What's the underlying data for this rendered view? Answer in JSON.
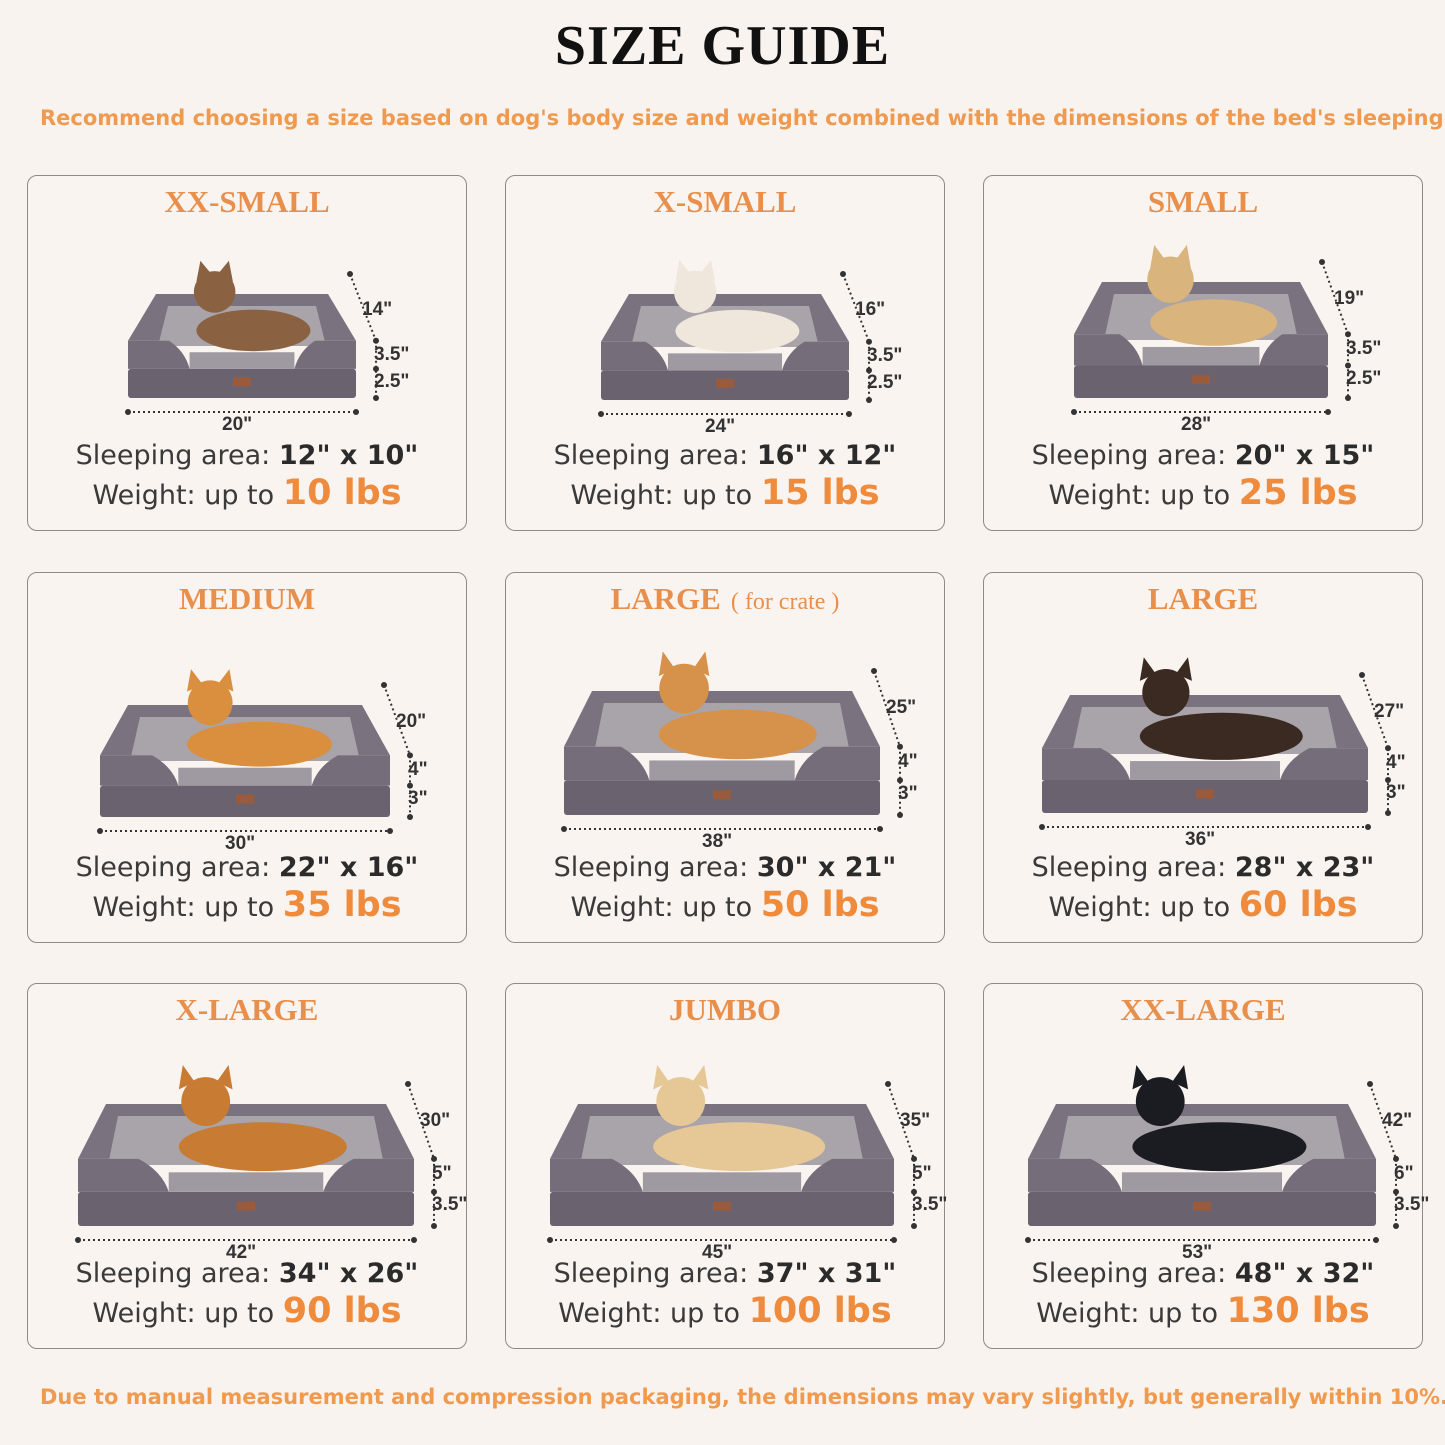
{
  "header": {
    "title": "SIZE GUIDE",
    "subtitle": "Recommend choosing a size based on dog's body size and weight combined with the dimensions of the bed's sleeping area."
  },
  "footer": {
    "note": "Due to manual measurement and compression packaging, the dimensions may vary slightly, but generally within 10%."
  },
  "labels": {
    "sleeping_area": "Sleeping area:",
    "weight": "Weight: up to"
  },
  "colors": {
    "accent": "#ee8b3c",
    "bed": "#6f6672",
    "background": "#f9f3ef"
  },
  "sizes": [
    {
      "name": "XX-SMALL",
      "note": "",
      "pet": "cat",
      "width": "20\"",
      "depth": "14\"",
      "bolster": "3.5\"",
      "base": "2.5\"",
      "sleeping_area": "12\" x 10\"",
      "weight": "10 lbs"
    },
    {
      "name": "X-SMALL",
      "note": "",
      "pet": "small white dog",
      "width": "24\"",
      "depth": "16\"",
      "bolster": "3.5\"",
      "base": "2.5\"",
      "sleeping_area": "16\" x 12\"",
      "weight": "15 lbs"
    },
    {
      "name": "SMALL",
      "note": "",
      "pet": "french bulldog",
      "width": "28\"",
      "depth": "19\"",
      "bolster": "3.5\"",
      "base": "2.5\"",
      "sleeping_area": "20\" x 15\"",
      "weight": "25 lbs"
    },
    {
      "name": "MEDIUM",
      "note": "",
      "pet": "corgi",
      "width": "30\"",
      "depth": "20\"",
      "bolster": "4\"",
      "base": "3\"",
      "sleeping_area": "22\" x 16\"",
      "weight": "35 lbs"
    },
    {
      "name": "LARGE",
      "note": "( for crate )",
      "pet": "shiba inu",
      "width": "38\"",
      "depth": "25\"",
      "bolster": "4\"",
      "base": "3\"",
      "sleeping_area": "30\" x 21\"",
      "weight": "50 lbs"
    },
    {
      "name": "LARGE",
      "note": "",
      "pet": "australian shepherd",
      "width": "36\"",
      "depth": "27\"",
      "bolster": "4\"",
      "base": "3\"",
      "sleeping_area": "28\" x 23\"",
      "weight": "60 lbs"
    },
    {
      "name": "X-LARGE",
      "note": "",
      "pet": "golden retriever",
      "width": "42\"",
      "depth": "30\"",
      "bolster": "5\"",
      "base": "3.5\"",
      "sleeping_area": "34\" x 26\"",
      "weight": "90 lbs"
    },
    {
      "name": "JUMBO",
      "note": "",
      "pet": "labrador",
      "width": "45\"",
      "depth": "35\"",
      "bolster": "5\"",
      "base": "3.5\"",
      "sleeping_area": "37\" x 31\"",
      "weight": "100 lbs"
    },
    {
      "name": "XX-LARGE",
      "note": "",
      "pet": "rottweiler",
      "width": "53\"",
      "depth": "42\"",
      "bolster": "6\"",
      "base": "3.5\"",
      "sleeping_area": "48\" x 32\"",
      "weight": "130 lbs"
    }
  ]
}
